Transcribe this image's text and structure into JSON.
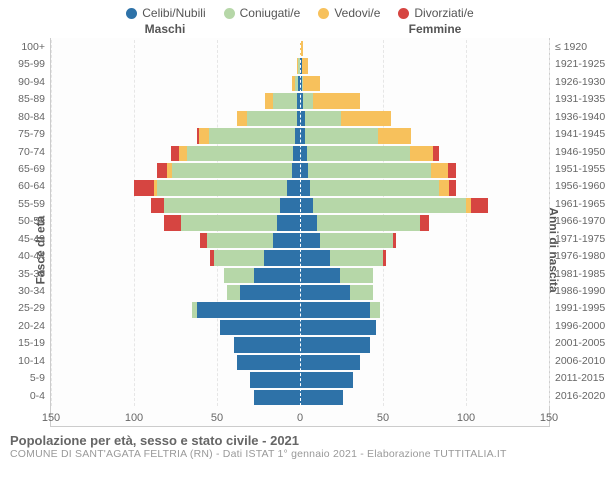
{
  "legend": [
    {
      "label": "Celibi/Nubili",
      "color": "#2e72a8"
    },
    {
      "label": "Coniugati/e",
      "color": "#b6d7a8"
    },
    {
      "label": "Vedovi/e",
      "color": "#f7c15c"
    },
    {
      "label": "Divorziati/e",
      "color": "#d64541"
    }
  ],
  "side_titles": {
    "male": "Maschi",
    "female": "Femmine"
  },
  "y_title_left": "Fasce di età",
  "y_title_right": "Anni di nascita",
  "x_axis": {
    "max": 150,
    "ticks": [
      150,
      100,
      50,
      0,
      50,
      100,
      150
    ]
  },
  "age_bins": [
    "100+",
    "95-99",
    "90-94",
    "85-89",
    "80-84",
    "75-79",
    "70-74",
    "65-69",
    "60-64",
    "55-59",
    "50-54",
    "45-49",
    "40-44",
    "35-39",
    "30-34",
    "25-29",
    "20-24",
    "15-19",
    "10-14",
    "5-9",
    "0-4"
  ],
  "year_bins": [
    "≤ 1920",
    "1921-1925",
    "1926-1930",
    "1931-1935",
    "1936-1940",
    "1941-1945",
    "1946-1950",
    "1951-1955",
    "1956-1960",
    "1961-1965",
    "1966-1970",
    "1971-1975",
    "1976-1980",
    "1981-1985",
    "1986-1990",
    "1991-1995",
    "1996-2000",
    "2001-2005",
    "2006-2010",
    "2011-2015",
    "2016-2020"
  ],
  "male": [
    {
      "single": 0,
      "married": 0,
      "widowed": 0,
      "divorced": 0
    },
    {
      "single": 0,
      "married": 1,
      "widowed": 1,
      "divorced": 0
    },
    {
      "single": 1,
      "married": 2,
      "widowed": 2,
      "divorced": 0
    },
    {
      "single": 2,
      "married": 14,
      "widowed": 5,
      "divorced": 0
    },
    {
      "single": 2,
      "married": 30,
      "widowed": 6,
      "divorced": 0
    },
    {
      "single": 3,
      "married": 52,
      "widowed": 6,
      "divorced": 1
    },
    {
      "single": 4,
      "married": 64,
      "widowed": 5,
      "divorced": 5
    },
    {
      "single": 5,
      "married": 72,
      "widowed": 3,
      "divorced": 6
    },
    {
      "single": 8,
      "married": 78,
      "widowed": 2,
      "divorced": 12
    },
    {
      "single": 12,
      "married": 70,
      "widowed": 0,
      "divorced": 8
    },
    {
      "single": 14,
      "married": 58,
      "widowed": 0,
      "divorced": 10
    },
    {
      "single": 16,
      "married": 40,
      "widowed": 0,
      "divorced": 4
    },
    {
      "single": 22,
      "married": 30,
      "widowed": 0,
      "divorced": 2
    },
    {
      "single": 28,
      "married": 18,
      "widowed": 0,
      "divorced": 0
    },
    {
      "single": 36,
      "married": 8,
      "widowed": 0,
      "divorced": 0
    },
    {
      "single": 62,
      "married": 3,
      "widowed": 0,
      "divorced": 0
    },
    {
      "single": 48,
      "married": 0,
      "widowed": 0,
      "divorced": 0
    },
    {
      "single": 40,
      "married": 0,
      "widowed": 0,
      "divorced": 0
    },
    {
      "single": 38,
      "married": 0,
      "widowed": 0,
      "divorced": 0
    },
    {
      "single": 30,
      "married": 0,
      "widowed": 0,
      "divorced": 0
    },
    {
      "single": 28,
      "married": 0,
      "widowed": 0,
      "divorced": 0
    }
  ],
  "female": [
    {
      "single": 0,
      "married": 0,
      "widowed": 2,
      "divorced": 0
    },
    {
      "single": 1,
      "married": 0,
      "widowed": 4,
      "divorced": 0
    },
    {
      "single": 1,
      "married": 1,
      "widowed": 10,
      "divorced": 0
    },
    {
      "single": 2,
      "married": 6,
      "widowed": 28,
      "divorced": 0
    },
    {
      "single": 3,
      "married": 22,
      "widowed": 30,
      "divorced": 0
    },
    {
      "single": 3,
      "married": 44,
      "widowed": 20,
      "divorced": 0
    },
    {
      "single": 4,
      "married": 62,
      "widowed": 14,
      "divorced": 4
    },
    {
      "single": 5,
      "married": 74,
      "widowed": 10,
      "divorced": 5
    },
    {
      "single": 6,
      "married": 78,
      "widowed": 6,
      "divorced": 4
    },
    {
      "single": 8,
      "married": 92,
      "widowed": 3,
      "divorced": 10
    },
    {
      "single": 10,
      "married": 62,
      "widowed": 0,
      "divorced": 6
    },
    {
      "single": 12,
      "married": 44,
      "widowed": 0,
      "divorced": 2
    },
    {
      "single": 18,
      "married": 32,
      "widowed": 0,
      "divorced": 2
    },
    {
      "single": 24,
      "married": 20,
      "widowed": 0,
      "divorced": 0
    },
    {
      "single": 30,
      "married": 14,
      "widowed": 0,
      "divorced": 0
    },
    {
      "single": 42,
      "married": 6,
      "widowed": 0,
      "divorced": 0
    },
    {
      "single": 46,
      "married": 0,
      "widowed": 0,
      "divorced": 0
    },
    {
      "single": 42,
      "married": 0,
      "widowed": 0,
      "divorced": 0
    },
    {
      "single": 36,
      "married": 0,
      "widowed": 0,
      "divorced": 0
    },
    {
      "single": 32,
      "married": 0,
      "widowed": 0,
      "divorced": 0
    },
    {
      "single": 26,
      "married": 0,
      "widowed": 0,
      "divorced": 0
    }
  ],
  "colors": {
    "single": "#2e72a8",
    "married": "#b6d7a8",
    "widowed": "#f7c15c",
    "divorced": "#d64541",
    "grid": "#e6e6e6",
    "bg": "#ffffff"
  },
  "footer": {
    "title": "Popolazione per età, sesso e stato civile - 2021",
    "sub": "COMUNE DI SANT'AGATA FELTRIA (RN) - Dati ISTAT 1° gennaio 2021 - Elaborazione TUTTITALIA.IT"
  }
}
